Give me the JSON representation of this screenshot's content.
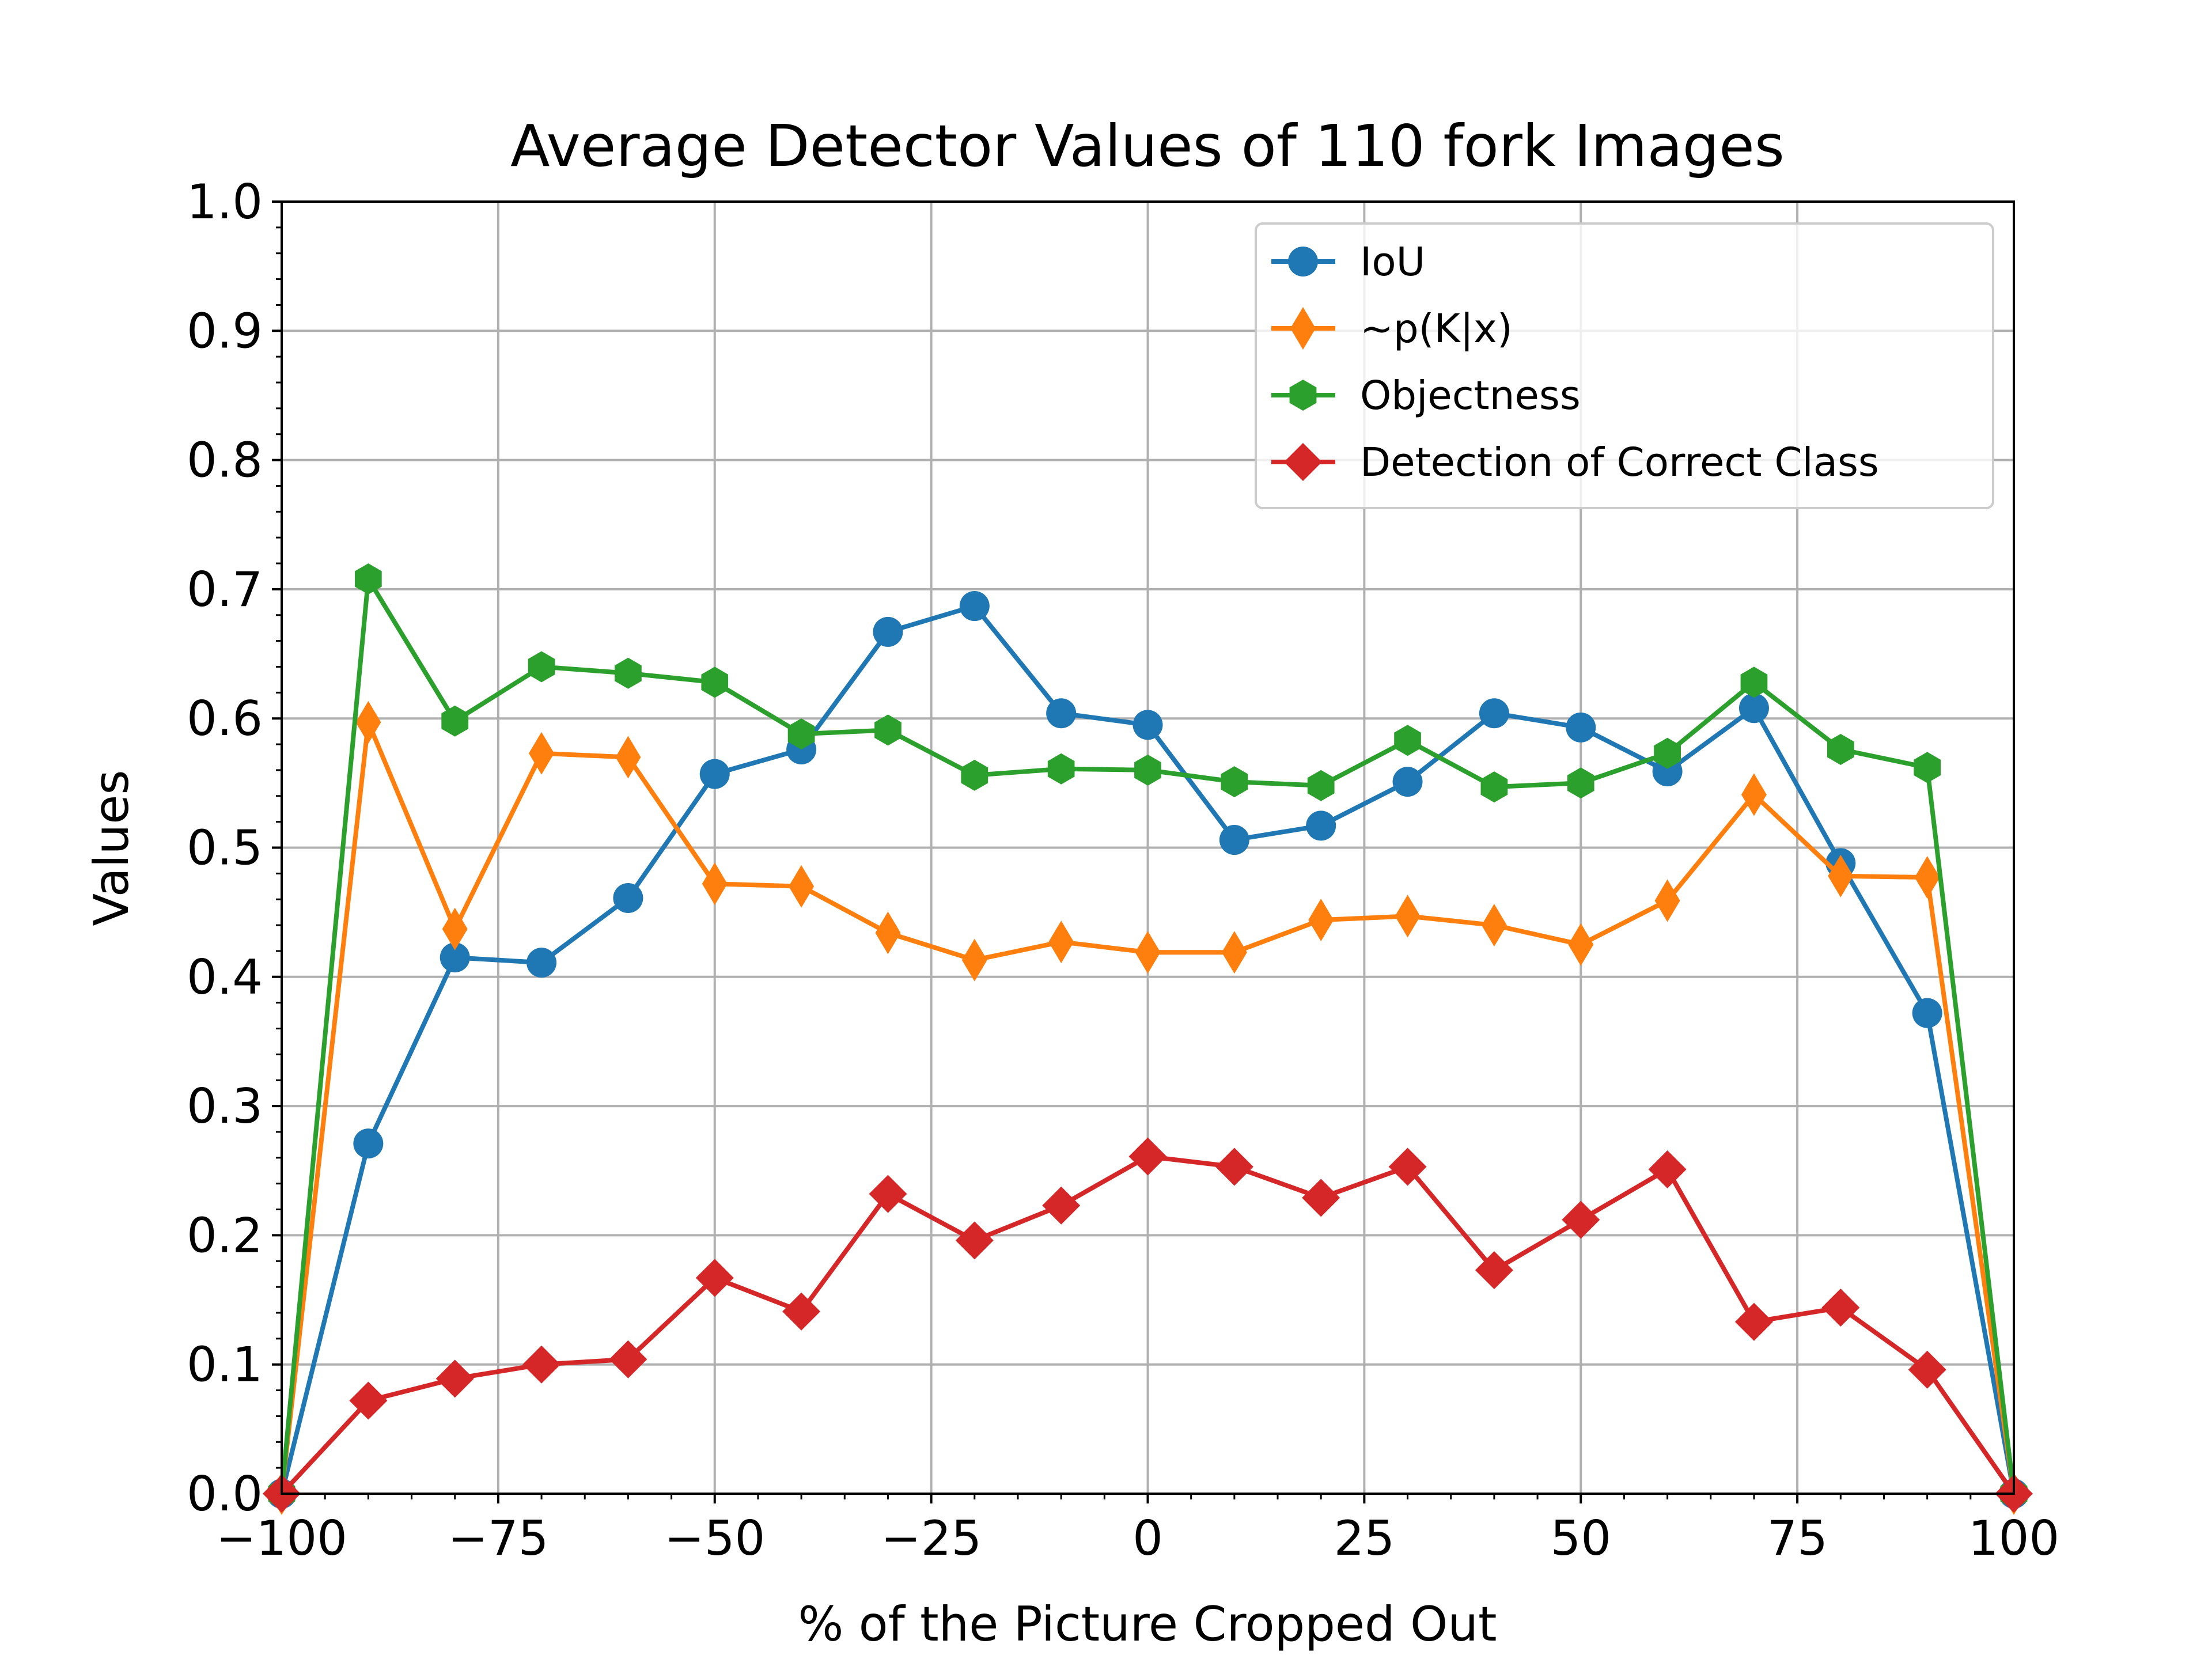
{
  "chart_data": {
    "type": "line",
    "title": "Average Detector Values of 110 fork Images",
    "xlabel": "% of the Picture Cropped Out",
    "ylabel": "Values",
    "xlim": [
      -100,
      100
    ],
    "ylim": [
      0,
      1
    ],
    "x_ticks": [
      -100,
      -75,
      -50,
      -25,
      0,
      25,
      50,
      75,
      100
    ],
    "x_tick_labels": [
      "−100",
      "−75",
      "−50",
      "−25",
      "0",
      "25",
      "50",
      "75",
      "100"
    ],
    "y_ticks": [
      0,
      0.1,
      0.2,
      0.3,
      0.4,
      0.5,
      0.6,
      0.7,
      0.8,
      0.9,
      1.0
    ],
    "y_tick_labels": [
      "0.0",
      "0.1",
      "0.2",
      "0.3",
      "0.4",
      "0.5",
      "0.6",
      "0.7",
      "0.8",
      "0.9",
      "1.0"
    ],
    "grid": true,
    "legend_position": "top-right",
    "x": [
      -100,
      -90,
      -80,
      -70,
      -60,
      -50,
      -40,
      -30,
      -20,
      -10,
      0,
      10,
      20,
      30,
      40,
      50,
      60,
      70,
      80,
      90,
      100
    ],
    "series": [
      {
        "name": "IoU",
        "color": "#1f77b4",
        "marker": "circle",
        "values": [
          0.0,
          0.271,
          0.415,
          0.411,
          0.461,
          0.557,
          0.576,
          0.667,
          0.687,
          0.604,
          0.595,
          0.506,
          0.517,
          0.551,
          0.604,
          0.593,
          0.559,
          0.608,
          0.488,
          0.372,
          0.0
        ]
      },
      {
        "name": "~p(K|x)",
        "color": "#ff7f0e",
        "marker": "thin-diamond",
        "values": [
          0.0,
          0.597,
          0.437,
          0.573,
          0.57,
          0.472,
          0.47,
          0.434,
          0.413,
          0.427,
          0.419,
          0.419,
          0.444,
          0.447,
          0.44,
          0.425,
          0.459,
          0.541,
          0.478,
          0.477,
          0.0
        ]
      },
      {
        "name": "Objectness",
        "color": "#2ca02c",
        "marker": "hexagon",
        "values": [
          0.0,
          0.708,
          0.598,
          0.64,
          0.635,
          0.628,
          0.588,
          0.591,
          0.556,
          0.561,
          0.56,
          0.551,
          0.548,
          0.583,
          0.547,
          0.55,
          0.573,
          0.628,
          0.576,
          0.562,
          0.0
        ]
      },
      {
        "name": "Detection of Correct Class",
        "color": "#d62728",
        "marker": "diamond",
        "values": [
          0.0,
          0.072,
          0.089,
          0.1,
          0.104,
          0.167,
          0.141,
          0.232,
          0.196,
          0.223,
          0.261,
          0.253,
          0.229,
          0.253,
          0.173,
          0.212,
          0.251,
          0.133,
          0.144,
          0.096,
          0.0
        ]
      }
    ]
  }
}
